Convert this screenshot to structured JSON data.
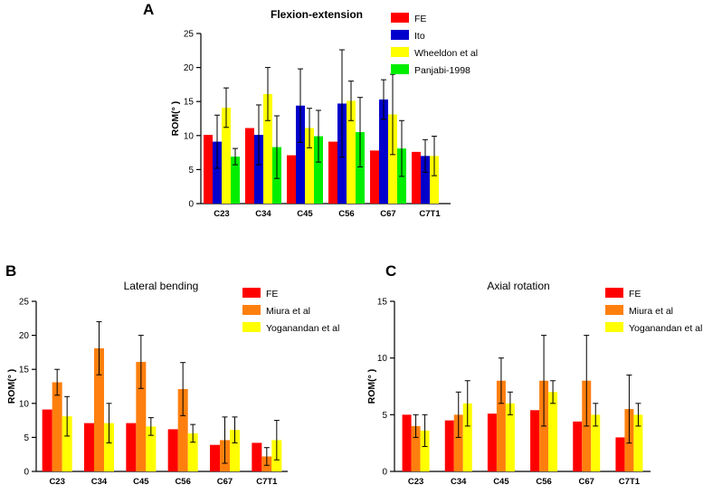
{
  "chart_data": [
    {
      "panel": "A",
      "type": "bar",
      "title": "Flexion-extension",
      "ylabel": "ROM(° )",
      "xlabel": "",
      "ylim": [
        0,
        25
      ],
      "yticks": [
        0,
        5,
        10,
        15,
        20,
        25
      ],
      "categories": [
        "C23",
        "C34",
        "C45",
        "C56",
        "C67",
        "C7T1"
      ],
      "legend_position": "top-right",
      "series": [
        {
          "name": "FE",
          "color": "#ff0000",
          "values": [
            10.1,
            11.1,
            7.1,
            9.1,
            7.8,
            7.6
          ],
          "errors": [
            null,
            null,
            null,
            null,
            null,
            null
          ]
        },
        {
          "name": "Ito",
          "color": "#0000cc",
          "values": [
            9.1,
            10.1,
            14.4,
            14.7,
            15.3,
            7.0
          ],
          "errors": [
            3.9,
            4.4,
            5.4,
            7.9,
            2.9,
            2.4
          ]
        },
        {
          "name": "Wheeldon et al",
          "color": "#ffff00",
          "values": [
            14.1,
            16.1,
            11.1,
            15.1,
            13.1,
            7.0
          ],
          "errors": [
            2.9,
            3.9,
            2.9,
            2.9,
            5.9,
            2.9
          ]
        },
        {
          "name": "Panjabi-1998",
          "color": "#00ee00",
          "values": [
            6.9,
            8.3,
            9.9,
            10.5,
            8.1,
            null
          ],
          "errors": [
            1.2,
            4.6,
            3.8,
            5.1,
            4.1,
            null
          ]
        }
      ]
    },
    {
      "panel": "B",
      "type": "bar",
      "title": "Lateral bending",
      "ylabel": "ROM(° )",
      "xlabel": "",
      "ylim": [
        0,
        25
      ],
      "yticks": [
        0,
        5,
        10,
        15,
        20,
        25
      ],
      "categories": [
        "C23",
        "C34",
        "C45",
        "C56",
        "C67",
        "C7T1"
      ],
      "legend_position": "top-right",
      "series": [
        {
          "name": "FE",
          "color": "#ff0000",
          "values": [
            9.1,
            7.1,
            7.1,
            6.2,
            3.9,
            4.2
          ],
          "errors": [
            null,
            null,
            null,
            null,
            null,
            null
          ]
        },
        {
          "name": "Miura  et al",
          "color": "#ff7f0e",
          "values": [
            13.1,
            18.1,
            16.1,
            12.1,
            4.6,
            2.2
          ],
          "errors": [
            1.9,
            3.9,
            3.9,
            3.9,
            3.4,
            1.3
          ]
        },
        {
          "name": "Yoganandan et al",
          "color": "#ffff00",
          "values": [
            8.1,
            7.1,
            6.6,
            5.6,
            6.1,
            4.6
          ],
          "errors": [
            2.9,
            2.9,
            1.3,
            1.3,
            1.9,
            2.9
          ]
        }
      ]
    },
    {
      "panel": "C",
      "type": "bar",
      "title": "Axial rotation",
      "ylabel": "ROM(° )",
      "xlabel": "",
      "ylim": [
        0,
        15
      ],
      "yticks": [
        0,
        5,
        10,
        15
      ],
      "categories": [
        "C23",
        "C34",
        "C45",
        "C56",
        "C67",
        "C7T1"
      ],
      "legend_position": "top-right",
      "series": [
        {
          "name": "FE",
          "color": "#ff0000",
          "values": [
            5.0,
            4.5,
            5.1,
            5.4,
            4.4,
            3.0
          ],
          "errors": [
            null,
            null,
            null,
            null,
            null,
            null
          ]
        },
        {
          "name": "Miura  et al",
          "color": "#ff7f0e",
          "values": [
            4.0,
            5.0,
            8.0,
            8.0,
            8.0,
            5.5
          ],
          "errors": [
            1.0,
            2.0,
            2.0,
            4.0,
            4.0,
            3.0
          ]
        },
        {
          "name": "Yoganandan et al",
          "color": "#ffff00",
          "values": [
            3.6,
            6.0,
            6.0,
            7.0,
            5.0,
            5.0
          ],
          "errors": [
            1.4,
            2.0,
            1.0,
            1.0,
            1.0,
            1.0
          ]
        }
      ]
    }
  ]
}
